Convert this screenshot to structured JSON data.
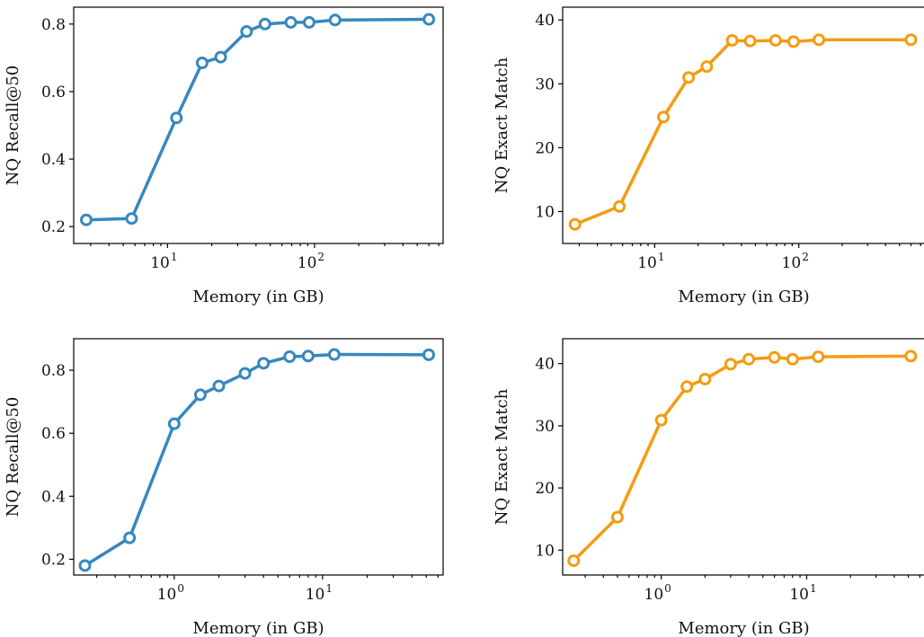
{
  "colors": {
    "blue": "#3787bf",
    "orange": "#f39c12"
  },
  "chart_data": [
    {
      "type": "line",
      "xscale": "log",
      "xlabel": "Memory (in GB)",
      "ylabel": "NQ Recall@50",
      "xlim": [
        2.3,
        750
      ],
      "ylim": [
        0.15,
        0.85
      ],
      "yticks": [
        0.2,
        0.4,
        0.6,
        0.8
      ],
      "ytick_labels": [
        "0.2",
        "0.4",
        "0.6",
        "0.8"
      ],
      "xticks": [
        10,
        100
      ],
      "xtick_labels": [
        {
          "base": "10",
          "exp": "1"
        },
        {
          "base": "10",
          "exp": "2"
        }
      ],
      "grid": false,
      "color": "blue",
      "series": [
        {
          "x": [
            2.8,
            5.7,
            11.5,
            17.2,
            23,
            34.5,
            46,
            69,
            92,
            138,
            600
          ],
          "y": [
            0.22,
            0.224,
            0.522,
            0.685,
            0.702,
            0.778,
            0.8,
            0.805,
            0.805,
            0.812,
            0.814
          ]
        }
      ]
    },
    {
      "type": "line",
      "xscale": "log",
      "xlabel": "Memory (in GB)",
      "ylabel": "NQ Exact Match",
      "xlim": [
        2.3,
        750
      ],
      "ylim": [
        5,
        42
      ],
      "yticks": [
        10,
        20,
        30,
        40
      ],
      "ytick_labels": [
        "10",
        "20",
        "30",
        "40"
      ],
      "xticks": [
        10,
        100
      ],
      "xtick_labels": [
        {
          "base": "10",
          "exp": "1"
        },
        {
          "base": "10",
          "exp": "2"
        }
      ],
      "grid": false,
      "color": "orange",
      "series": [
        {
          "x": [
            2.8,
            5.7,
            11.5,
            17.2,
            23,
            34.5,
            46,
            69,
            92,
            138,
            600
          ],
          "y": [
            8,
            10.8,
            24.8,
            31,
            32.7,
            36.8,
            36.7,
            36.8,
            36.6,
            36.9,
            36.9
          ]
        }
      ]
    },
    {
      "type": "line",
      "xscale": "log",
      "xlabel": "Memory (in GB)",
      "ylabel": "NQ Recall@50",
      "xlim": [
        0.21,
        65
      ],
      "ylim": [
        0.15,
        0.9
      ],
      "yticks": [
        0.2,
        0.4,
        0.6,
        0.8
      ],
      "ytick_labels": [
        "0.2",
        "0.4",
        "0.6",
        "0.8"
      ],
      "xticks": [
        1,
        10
      ],
      "xtick_labels": [
        {
          "base": "10",
          "exp": "0"
        },
        {
          "base": "10",
          "exp": "1"
        }
      ],
      "grid": false,
      "color": "blue",
      "series": [
        {
          "x": [
            0.25,
            0.5,
            1,
            1.5,
            2,
            3,
            4,
            6,
            8,
            12,
            52
          ],
          "y": [
            0.18,
            0.268,
            0.63,
            0.722,
            0.75,
            0.79,
            0.822,
            0.843,
            0.845,
            0.85,
            0.849
          ]
        }
      ]
    },
    {
      "type": "line",
      "xscale": "log",
      "xlabel": "Memory (in GB)",
      "ylabel": "NQ Exact Match",
      "xlim": [
        0.21,
        65
      ],
      "ylim": [
        6,
        44
      ],
      "yticks": [
        10,
        20,
        30,
        40
      ],
      "ytick_labels": [
        "10",
        "20",
        "30",
        "40"
      ],
      "xticks": [
        1,
        10
      ],
      "xtick_labels": [
        {
          "base": "10",
          "exp": "0"
        },
        {
          "base": "10",
          "exp": "1"
        }
      ],
      "grid": false,
      "color": "orange",
      "series": [
        {
          "x": [
            0.25,
            0.5,
            1,
            1.5,
            2,
            3,
            4,
            6,
            8,
            12,
            52
          ],
          "y": [
            8.3,
            15.3,
            30.9,
            36.3,
            37.5,
            39.9,
            40.7,
            41,
            40.7,
            41.1,
            41.2
          ]
        }
      ]
    }
  ]
}
